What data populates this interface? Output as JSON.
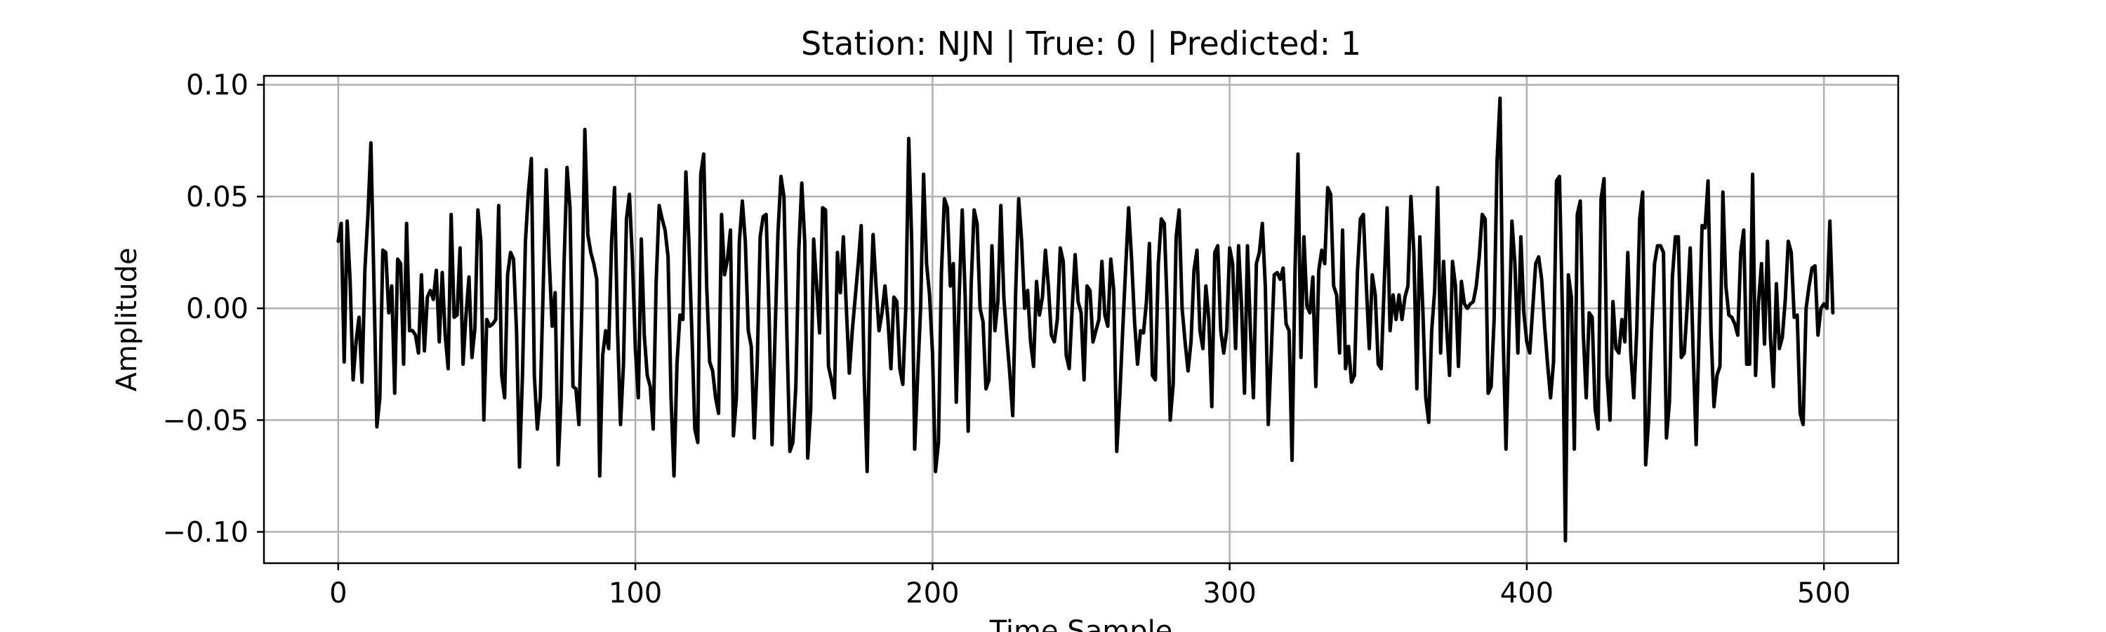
{
  "chart_data": {
    "type": "line",
    "title": "Station: NJN | True: 0 | Predicted: 1",
    "xlabel": "Time Sample",
    "ylabel": "Amplitude",
    "xlim": [
      -25,
      525
    ],
    "ylim": [
      -0.114,
      0.104
    ],
    "xticks": [
      0,
      100,
      200,
      300,
      400,
      500
    ],
    "xtick_labels": [
      "0",
      "100",
      "200",
      "300",
      "400",
      "500"
    ],
    "yticks": [
      0.1,
      0.05,
      0.0,
      -0.05,
      -0.1
    ],
    "ytick_labels": [
      "0.10",
      "0.05",
      "0.00",
      "−0.05",
      "−0.10"
    ],
    "grid": true,
    "series": [
      {
        "color": "#000000",
        "x_start": 0,
        "x_step": 1,
        "values": [
          0.03,
          0.038,
          -0.024,
          0.039,
          0.012,
          -0.032,
          -0.015,
          -0.004,
          -0.033,
          0.018,
          0.042,
          0.074,
          0.012,
          -0.053,
          -0.04,
          0.026,
          0.025,
          -0.002,
          0.01,
          -0.038,
          0.022,
          0.02,
          -0.025,
          0.038,
          -0.01,
          -0.01,
          -0.012,
          -0.02,
          0.015,
          -0.019,
          0.005,
          0.008,
          0.004,
          0.017,
          -0.015,
          0.016,
          -0.012,
          -0.027,
          0.042,
          -0.004,
          -0.003,
          0.027,
          -0.025,
          -0.003,
          0.014,
          -0.022,
          -0.009,
          0.044,
          0.03,
          -0.05,
          -0.005,
          -0.008,
          -0.007,
          -0.005,
          0.046,
          -0.03,
          -0.04,
          0.015,
          0.025,
          0.022,
          -0.01,
          -0.071,
          -0.03,
          0.03,
          0.052,
          0.067,
          -0.03,
          -0.054,
          -0.04,
          0.01,
          0.062,
          0.022,
          -0.008,
          0.007,
          -0.07,
          -0.04,
          0.02,
          0.063,
          0.045,
          -0.035,
          -0.036,
          -0.052,
          0.002,
          0.08,
          0.033,
          0.025,
          0.02,
          0.013,
          -0.075,
          -0.021,
          -0.01,
          -0.018,
          0.03,
          0.054,
          -0.01,
          -0.052,
          -0.025,
          0.04,
          0.051,
          0.022,
          -0.018,
          -0.04,
          0.031,
          -0.012,
          -0.03,
          -0.035,
          -0.054,
          0.012,
          0.046,
          0.04,
          0.035,
          0.023,
          -0.04,
          -0.075,
          -0.025,
          -0.003,
          -0.005,
          0.061,
          0.03,
          -0.01,
          -0.054,
          -0.06,
          0.06,
          0.069,
          0.01,
          -0.024,
          -0.028,
          -0.04,
          -0.047,
          0.042,
          0.015,
          0.022,
          0.035,
          -0.057,
          -0.04,
          0.03,
          0.048,
          0.03,
          -0.01,
          -0.017,
          -0.058,
          -0.025,
          0.032,
          0.041,
          0.042,
          -0.003,
          -0.061,
          -0.012,
          0.034,
          0.059,
          0.05,
          -0.012,
          -0.064,
          -0.06,
          -0.035,
          0.026,
          0.056,
          0.03,
          -0.067,
          -0.045,
          0.031,
          0.01,
          -0.011,
          0.045,
          0.044,
          -0.026,
          -0.032,
          -0.04,
          0.025,
          0.007,
          0.032,
          0.0,
          -0.029,
          -0.01,
          0.005,
          0.02,
          0.037,
          -0.03,
          -0.073,
          -0.001,
          0.033,
          0.01,
          -0.01,
          -0.002,
          0.01,
          -0.005,
          -0.027,
          0.005,
          0.003,
          -0.027,
          -0.034,
          0.0,
          0.076,
          0.03,
          -0.063,
          -0.03,
          0.0,
          0.06,
          0.02,
          0.006,
          -0.02,
          -0.073,
          -0.06,
          0.016,
          0.049,
          0.045,
          0.01,
          0.02,
          -0.042,
          0.007,
          0.044,
          0.005,
          -0.055,
          0.01,
          0.044,
          0.038,
          0.0,
          -0.006,
          -0.036,
          -0.032,
          0.028,
          -0.01,
          0.003,
          0.046,
          0.005,
          -0.013,
          -0.029,
          -0.048,
          0.008,
          0.049,
          0.03,
          0.0,
          0.008,
          -0.015,
          -0.026,
          0.012,
          -0.003,
          0.005,
          0.026,
          0.01,
          -0.012,
          -0.015,
          -0.005,
          0.027,
          0.021,
          -0.021,
          -0.027,
          0.0,
          0.024,
          0.003,
          -0.002,
          -0.032,
          0.01,
          0.008,
          -0.015,
          -0.01,
          -0.005,
          0.021,
          -0.003,
          -0.008,
          0.022,
          0.008,
          -0.064,
          -0.04,
          -0.01,
          0.018,
          0.045,
          0.022,
          -0.006,
          -0.025,
          -0.01,
          -0.011,
          0.003,
          0.029,
          -0.03,
          -0.032,
          0.02,
          0.04,
          0.038,
          0.0,
          -0.05,
          -0.034,
          0.032,
          0.044,
          0.0,
          -0.015,
          -0.028,
          -0.015,
          0.017,
          0.026,
          -0.01,
          -0.018,
          0.01,
          -0.005,
          -0.044,
          0.025,
          0.028,
          -0.01,
          -0.02,
          -0.01,
          0.027,
          0.02,
          -0.018,
          0.028,
          0.001,
          -0.038,
          0.028,
          -0.01,
          -0.04,
          0.02,
          0.025,
          0.038,
          0.01,
          -0.052,
          -0.02,
          0.015,
          0.016,
          0.013,
          0.018,
          -0.007,
          -0.01,
          -0.068,
          0.017,
          0.069,
          -0.022,
          0.032,
          0.001,
          -0.002,
          0.014,
          -0.035,
          0.017,
          0.026,
          0.02,
          0.054,
          0.051,
          0.01,
          0.006,
          -0.02,
          0.035,
          -0.027,
          -0.017,
          -0.033,
          -0.03,
          0.016,
          0.04,
          0.042,
          0.01,
          -0.018,
          0.015,
          0.006,
          -0.025,
          -0.027,
          0.01,
          0.045,
          -0.01,
          0.006,
          -0.005,
          0.006,
          -0.005,
          0.005,
          0.01,
          0.05,
          0.025,
          -0.036,
          0.032,
          0.0,
          -0.04,
          -0.051,
          -0.01,
          0.008,
          0.054,
          -0.02,
          0.021,
          -0.008,
          -0.03,
          0.021,
          0.01,
          -0.026,
          0.012,
          0.002,
          0.0,
          0.002,
          0.003,
          0.01,
          0.023,
          0.042,
          0.04,
          -0.038,
          -0.035,
          -0.005,
          0.066,
          0.094,
          -0.01,
          -0.063,
          -0.011,
          0.039,
          0.02,
          -0.02,
          0.032,
          -0.002,
          -0.015,
          -0.02,
          0.0,
          0.02,
          0.023,
          0.013,
          -0.008,
          -0.025,
          -0.04,
          -0.024,
          0.057,
          0.059,
          -0.002,
          -0.104,
          0.015,
          0.005,
          -0.063,
          0.042,
          0.048,
          -0.011,
          -0.04,
          -0.002,
          -0.004,
          -0.045,
          -0.054,
          0.049,
          0.058,
          -0.03,
          -0.05,
          0.003,
          -0.018,
          -0.02,
          -0.005,
          -0.015,
          0.025,
          -0.02,
          -0.04,
          -0.01,
          0.04,
          0.052,
          -0.07,
          -0.05,
          -0.01,
          0.02,
          0.028,
          0.028,
          0.025,
          -0.058,
          -0.042,
          0.014,
          0.032,
          0.032,
          -0.022,
          -0.02,
          0.001,
          0.027,
          -0.02,
          -0.061,
          -0.01,
          0.037,
          0.036,
          0.057,
          -0.01,
          -0.044,
          -0.03,
          -0.026,
          0.052,
          0.01,
          -0.003,
          -0.004,
          -0.007,
          -0.012,
          0.025,
          0.035,
          -0.025,
          -0.025,
          0.06,
          -0.03,
          0.003,
          0.02,
          -0.016,
          0.03,
          -0.013,
          -0.035,
          0.011,
          -0.018,
          -0.013,
          0.004,
          0.03,
          0.025,
          -0.004,
          -0.003,
          -0.047,
          -0.052,
          0.0,
          0.01,
          0.018,
          0.019,
          -0.012,
          0.0,
          0.002,
          0.0,
          0.039,
          -0.002
        ]
      }
    ]
  }
}
